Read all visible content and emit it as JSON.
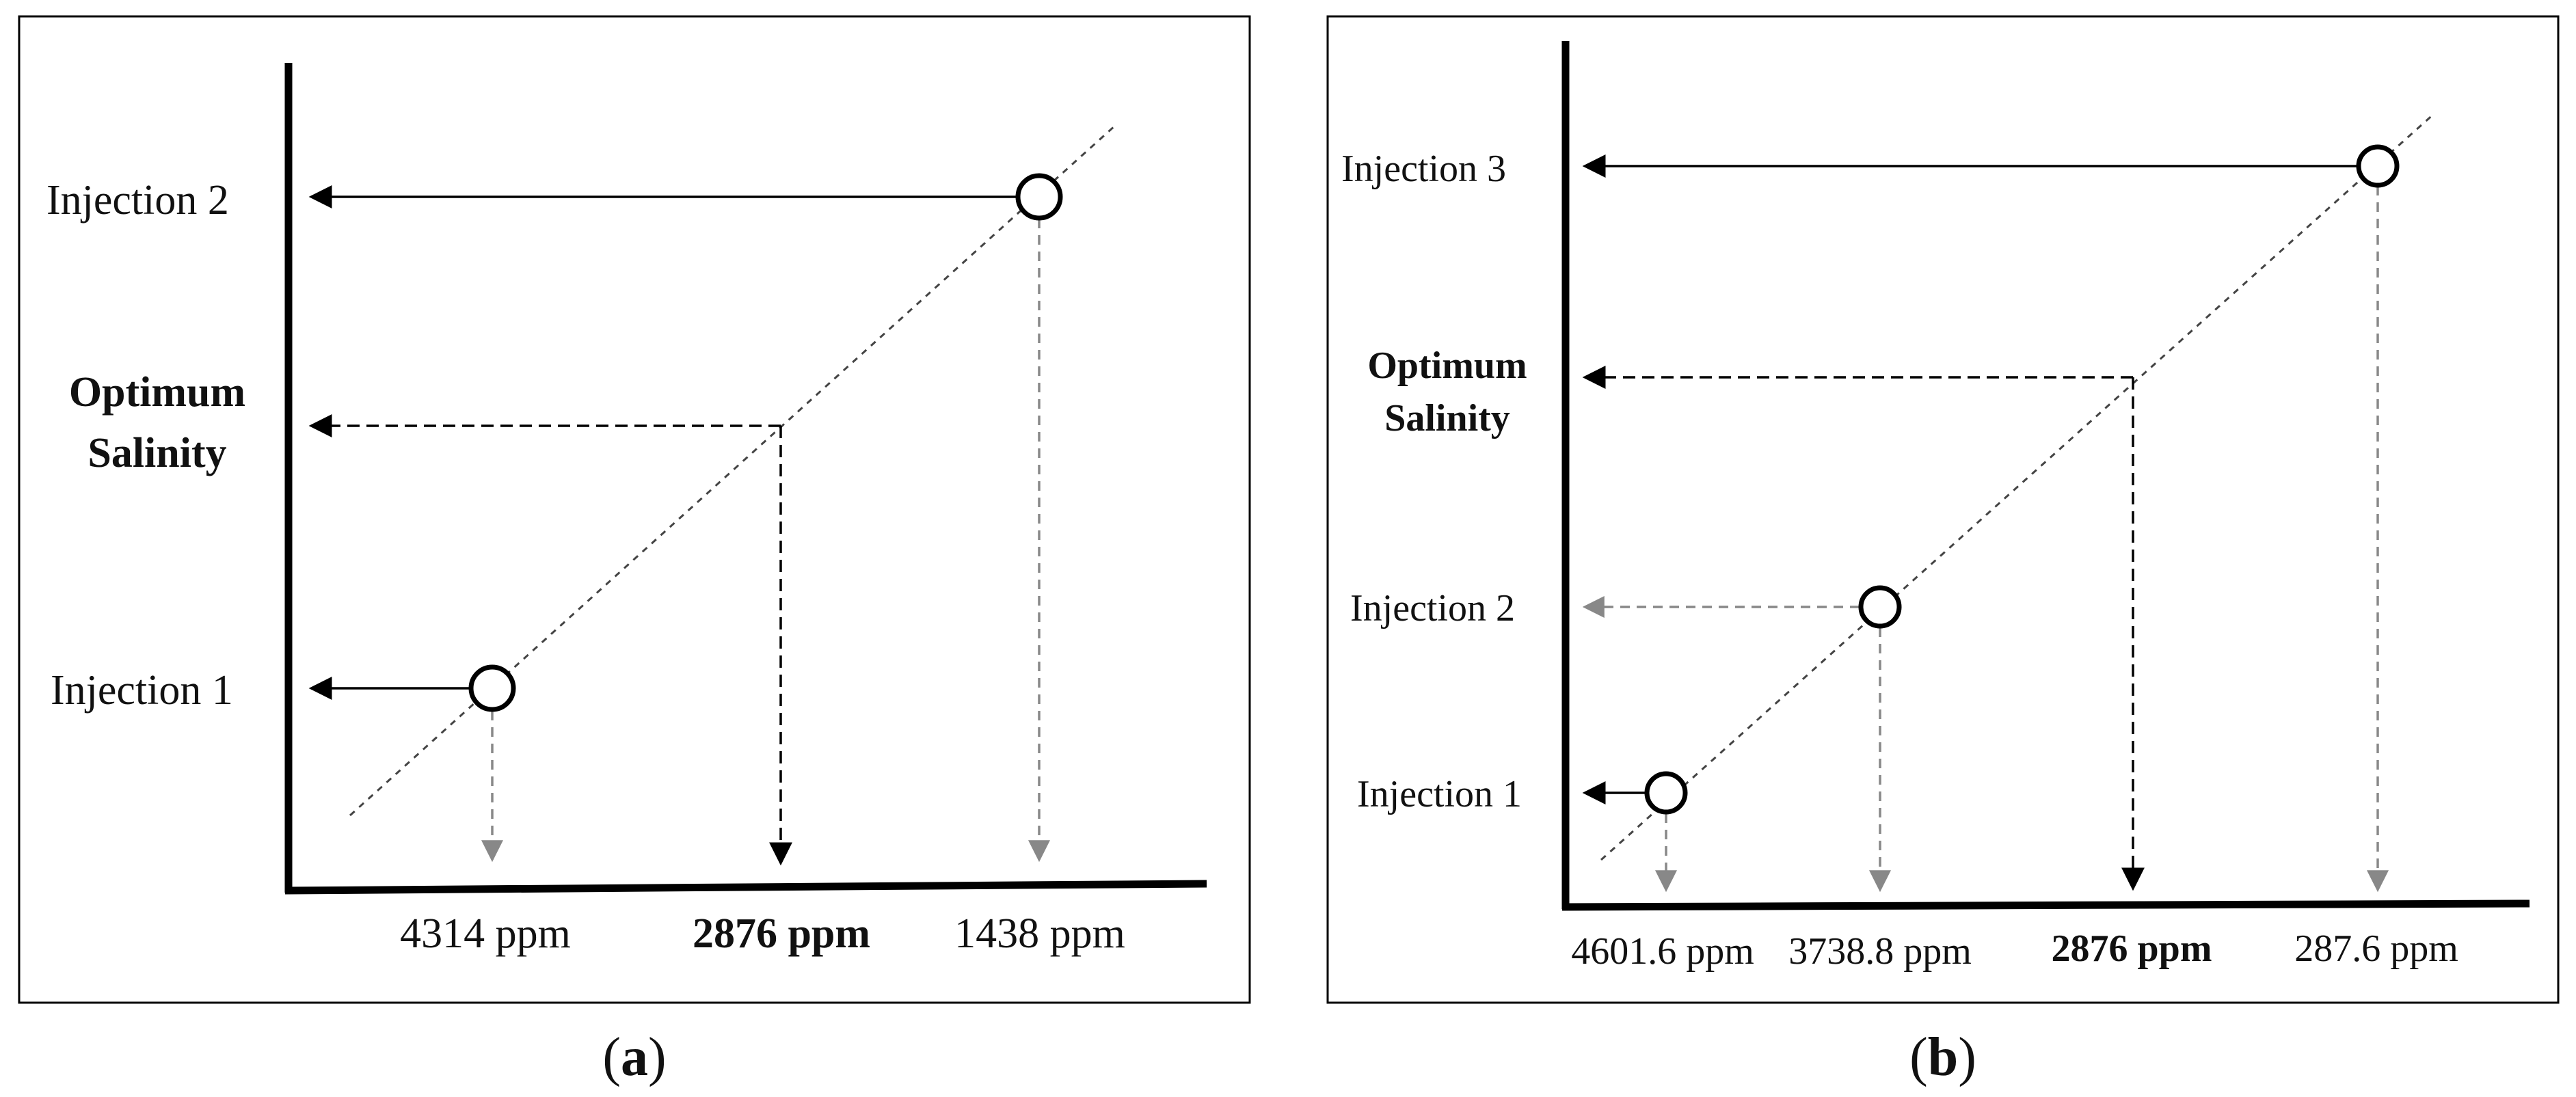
{
  "colors": {
    "solid_arrow": "#000000",
    "gray_arrow": "#888888",
    "dotted_line": "#444444",
    "frame": "#000000"
  },
  "panels": [
    {
      "caption_letter": "a",
      "y_labels": {
        "injection_2": "Injection 2",
        "optimum_line1": "Optimum",
        "optimum_line2": "Salinity",
        "injection_1": "Injection 1"
      },
      "x_labels": [
        "4314 ppm",
        "2876 ppm",
        "1438 ppm"
      ]
    },
    {
      "caption_letter": "b",
      "y_labels": {
        "injection_3": "Injection 3",
        "optimum_line1": "Optimum",
        "optimum_line2": "Salinity",
        "injection_2": "Injection 2",
        "injection_1": "Injection 1"
      },
      "x_labels": [
        "4601.6 ppm",
        "3738.8 ppm",
        "2876 ppm",
        "287.6 ppm"
      ]
    }
  ]
}
